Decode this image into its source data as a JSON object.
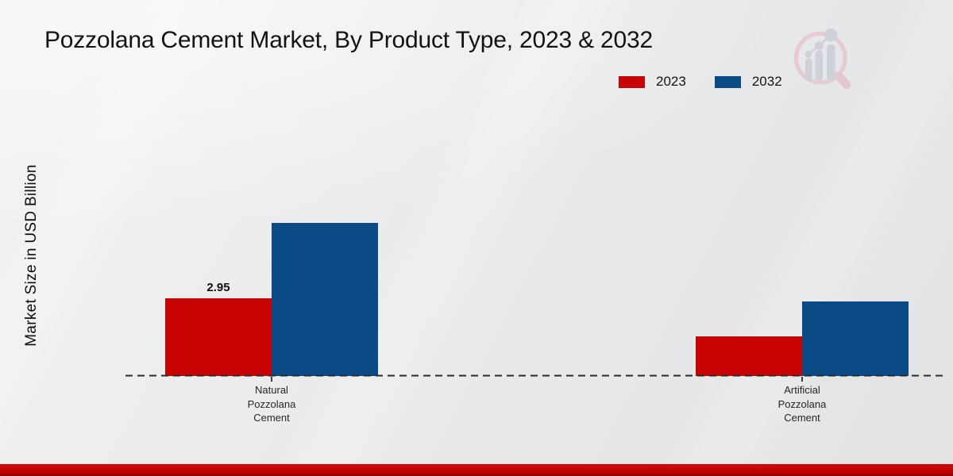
{
  "chart_data": {
    "type": "bar",
    "title": "Pozzolana Cement Market, By Product Type, 2023 & 2032",
    "ylabel": "Market Size in USD Billion",
    "xlabel": "",
    "categories": [
      "Natural Pozzolana Cement",
      "Artificial Pozzolana Cement"
    ],
    "series": [
      {
        "name": "2023",
        "color": "#c90404",
        "values": [
          2.95,
          1.5
        ],
        "data_labels": [
          "2.95",
          ""
        ]
      },
      {
        "name": "2032",
        "color": "#0b4b85",
        "values": [
          5.84,
          2.84
        ],
        "data_labels": [
          "",
          ""
        ]
      }
    ],
    "ylim": [
      0,
      6.5
    ],
    "grid": false,
    "legend_position": "top-right",
    "axis_style": "dashed-baseline-only"
  },
  "watermark": {
    "name": "market-research-future-logo"
  },
  "footer": {
    "accent": "#c40303"
  }
}
